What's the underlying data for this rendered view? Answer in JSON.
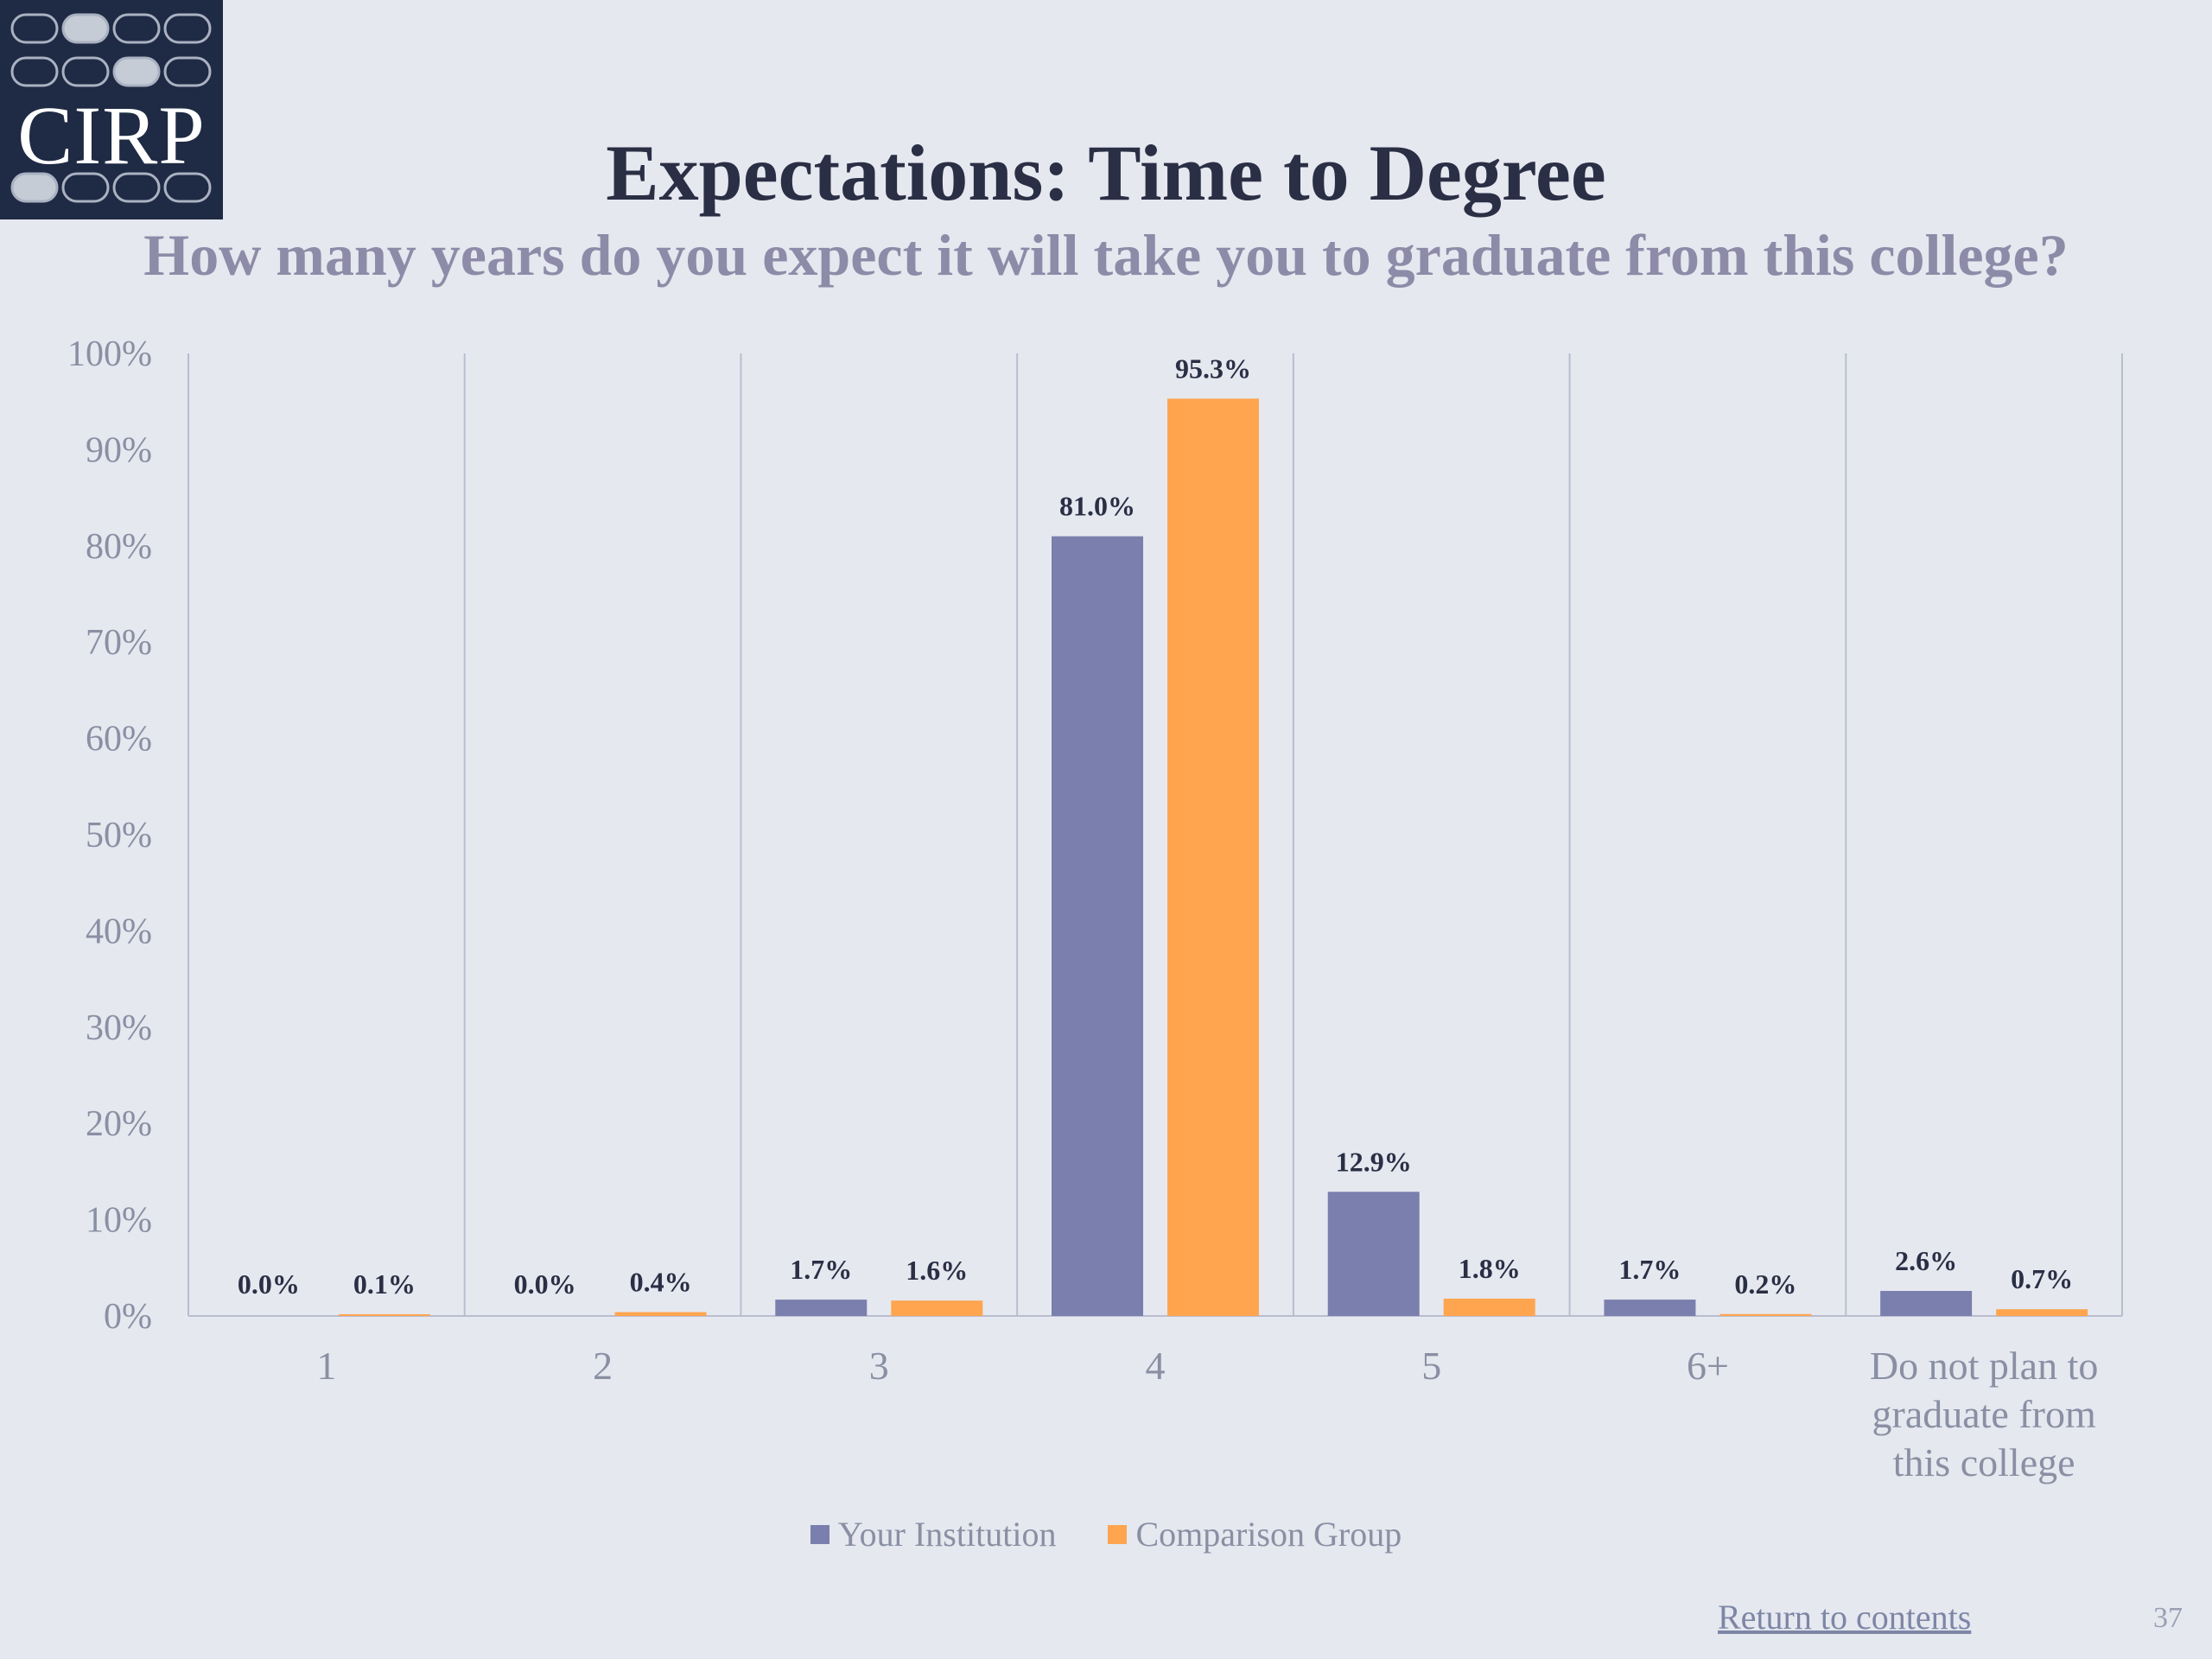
{
  "logo": {
    "text": "CIRP",
    "bg_color": "#1f2a44"
  },
  "title": "Expectations: Time to Degree",
  "subtitle": "How many years do you expect it will take you to graduate from this college?",
  "chart_data": {
    "type": "bar",
    "categories": [
      "1",
      "2",
      "3",
      "4",
      "5",
      "6+",
      "Do not plan to graduate from this college"
    ],
    "category_lines": [
      [
        "1"
      ],
      [
        "2"
      ],
      [
        "3"
      ],
      [
        "4"
      ],
      [
        "5"
      ],
      [
        "6+"
      ],
      [
        "Do not plan to",
        "graduate from",
        "this college"
      ]
    ],
    "series": [
      {
        "name": "Your Institution",
        "color": "#7a7fad",
        "values": [
          0.0,
          0.0,
          1.7,
          81.0,
          12.9,
          1.7,
          2.6
        ],
        "labels": [
          "0.0%",
          "0.0%",
          "1.7%",
          "81.0%",
          "12.9%",
          "1.7%",
          "2.6%"
        ]
      },
      {
        "name": "Comparison Group",
        "color": "#ffa54f",
        "values": [
          0.1,
          0.4,
          1.6,
          95.3,
          1.8,
          0.2,
          0.7
        ],
        "labels": [
          "0.1%",
          "0.4%",
          "1.6%",
          "95.3%",
          "1.8%",
          "0.2%",
          "0.7%"
        ]
      }
    ],
    "yticks": [
      "0%",
      "10%",
      "20%",
      "30%",
      "40%",
      "50%",
      "60%",
      "70%",
      "80%",
      "90%",
      "100%"
    ],
    "ylim": [
      0,
      100
    ],
    "legend_position": "bottom",
    "grid": "vertical category separators"
  },
  "footer": {
    "return_link": "Return to contents",
    "page_number": "37"
  }
}
